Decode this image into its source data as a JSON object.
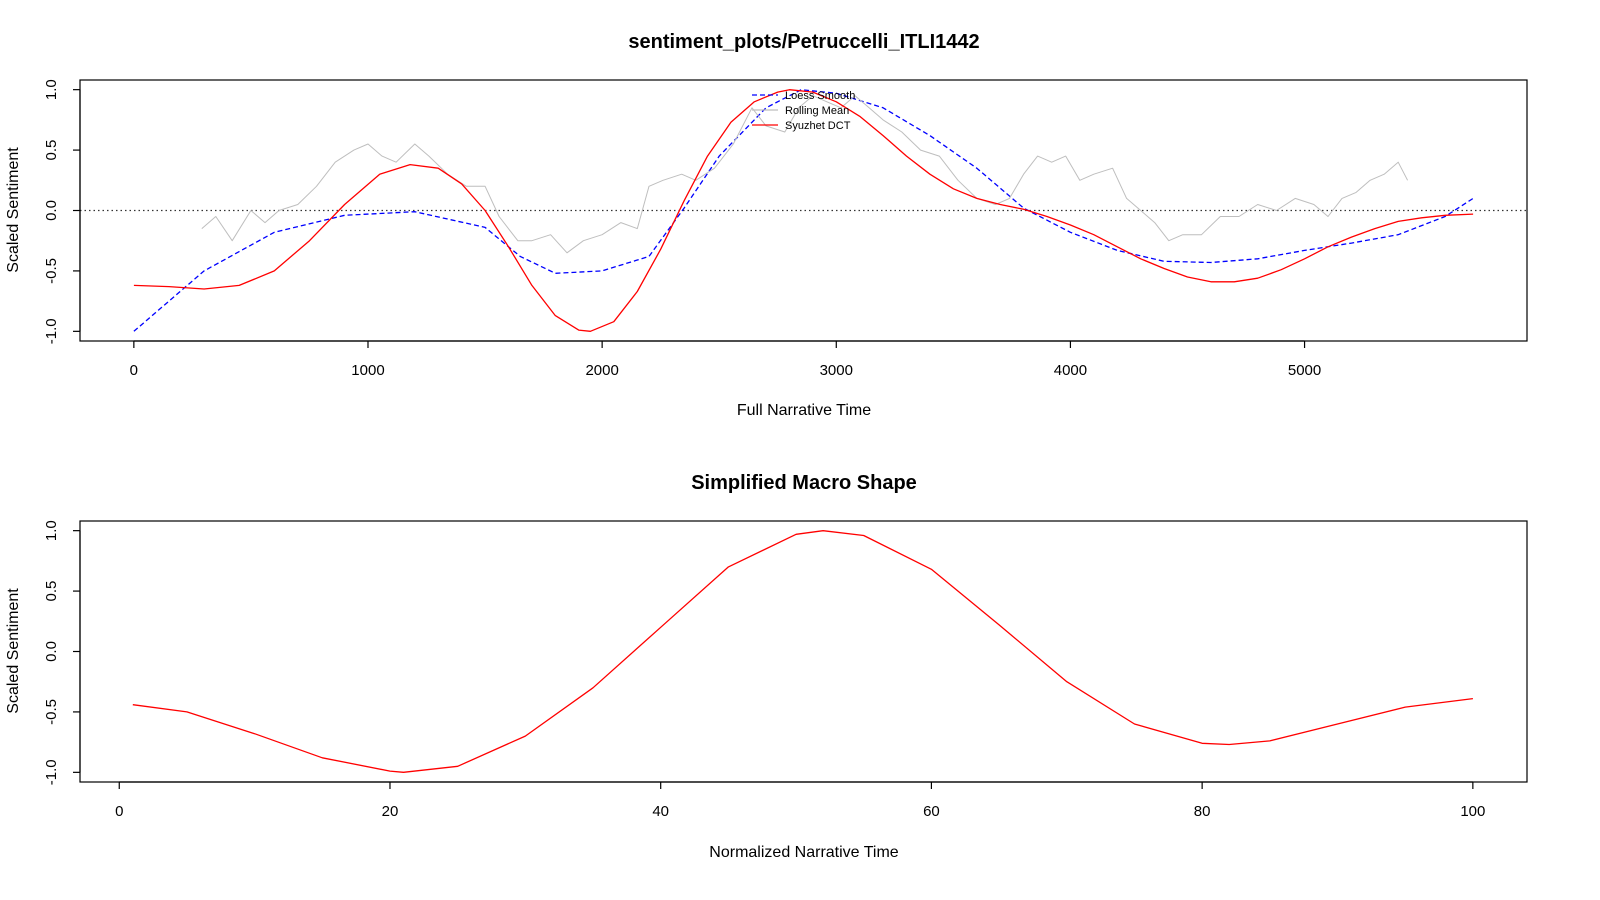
{
  "chart_data": [
    {
      "type": "line",
      "title": "sentiment_plots/Petruccelli_ITLI1442",
      "xlabel": "Full Narrative Time",
      "ylabel": "Scaled Sentiment",
      "xlim": [
        -230,
        5950
      ],
      "ylim": [
        -1.08,
        1.08
      ],
      "x_ticks": [
        0,
        1000,
        2000,
        3000,
        4000,
        5000
      ],
      "y_ticks": [
        -1.0,
        -0.5,
        0.0,
        0.5,
        1.0
      ],
      "y_tick_labels": [
        "-1.0",
        "-0.5",
        "0.0",
        "0.5",
        "1.0"
      ],
      "reference_line_y": 0,
      "legend": {
        "position": "top-center",
        "entries": [
          {
            "label": "Loess Smooth",
            "color": "#0000ff",
            "style": "dashed"
          },
          {
            "label": "Rolling Mean",
            "color": "#bebebe",
            "style": "solid"
          },
          {
            "label": "Syuzhet DCT",
            "color": "#ff0000",
            "style": "solid"
          }
        ]
      },
      "series": [
        {
          "name": "Loess Smooth",
          "color": "#0000ff",
          "style": "dashed",
          "x": [
            0,
            300,
            600,
            900,
            1200,
            1500,
            1650,
            1800,
            2000,
            2200,
            2350,
            2500,
            2700,
            2850,
            3000,
            3200,
            3400,
            3600,
            3800,
            4000,
            4200,
            4400,
            4600,
            4800,
            5000,
            5200,
            5400,
            5600,
            5720
          ],
          "y": [
            -1.0,
            -0.5,
            -0.18,
            -0.04,
            -0.01,
            -0.14,
            -0.38,
            -0.52,
            -0.5,
            -0.38,
            0.02,
            0.45,
            0.85,
            1.0,
            0.97,
            0.85,
            0.62,
            0.35,
            0.02,
            -0.18,
            -0.33,
            -0.42,
            -0.43,
            -0.4,
            -0.33,
            -0.27,
            -0.2,
            -0.05,
            0.1
          ]
        },
        {
          "name": "Rolling Mean",
          "color": "#bebebe",
          "style": "solid",
          "x": [
            290,
            350,
            420,
            500,
            560,
            620,
            700,
            780,
            860,
            940,
            1000,
            1060,
            1120,
            1200,
            1260,
            1340,
            1420,
            1500,
            1560,
            1640,
            1700,
            1780,
            1850,
            1920,
            2000,
            2080,
            2150,
            2200,
            2260,
            2340,
            2400,
            2480,
            2560,
            2640,
            2700,
            2780,
            2840,
            2900,
            2960,
            3020,
            3080,
            3140,
            3200,
            3280,
            3360,
            3440,
            3520,
            3600,
            3680,
            3740,
            3800,
            3860,
            3920,
            3980,
            4040,
            4100,
            4180,
            4240,
            4300,
            4360,
            4420,
            4480,
            4560,
            4640,
            4720,
            4800,
            4880,
            4960,
            5040,
            5100,
            5160,
            5220,
            5280,
            5340,
            5400,
            5440
          ],
          "y": [
            -0.15,
            -0.05,
            -0.25,
            0.0,
            -0.1,
            0.0,
            0.05,
            0.2,
            0.4,
            0.5,
            0.55,
            0.45,
            0.4,
            0.55,
            0.45,
            0.3,
            0.2,
            0.2,
            -0.05,
            -0.25,
            -0.25,
            -0.2,
            -0.35,
            -0.25,
            -0.2,
            -0.1,
            -0.15,
            0.2,
            0.25,
            0.3,
            0.25,
            0.35,
            0.55,
            0.85,
            0.7,
            0.65,
            0.85,
            0.95,
            0.9,
            0.85,
            0.95,
            0.85,
            0.75,
            0.65,
            0.5,
            0.45,
            0.25,
            0.1,
            0.05,
            0.1,
            0.3,
            0.45,
            0.4,
            0.45,
            0.25,
            0.3,
            0.35,
            0.1,
            0.0,
            -0.1,
            -0.25,
            -0.2,
            -0.2,
            -0.05,
            -0.05,
            0.05,
            0.0,
            0.1,
            0.05,
            -0.05,
            0.1,
            0.15,
            0.25,
            0.3,
            0.4,
            0.25
          ]
        },
        {
          "name": "Syuzhet DCT",
          "color": "#ff0000",
          "style": "solid",
          "x": [
            0,
            150,
            300,
            450,
            600,
            750,
            900,
            1050,
            1180,
            1300,
            1400,
            1500,
            1600,
            1700,
            1800,
            1900,
            1950,
            2050,
            2150,
            2250,
            2350,
            2450,
            2550,
            2650,
            2750,
            2800,
            2900,
            3000,
            3100,
            3200,
            3300,
            3400,
            3500,
            3600,
            3700,
            3800,
            3900,
            4000,
            4100,
            4200,
            4300,
            4400,
            4500,
            4600,
            4700,
            4800,
            4900,
            5000,
            5100,
            5200,
            5300,
            5400,
            5500,
            5600,
            5720
          ],
          "y": [
            -0.62,
            -0.63,
            -0.65,
            -0.62,
            -0.5,
            -0.25,
            0.05,
            0.3,
            0.38,
            0.35,
            0.22,
            0.0,
            -0.3,
            -0.62,
            -0.87,
            -0.99,
            -1.0,
            -0.92,
            -0.67,
            -0.32,
            0.08,
            0.45,
            0.73,
            0.9,
            0.98,
            1.0,
            0.98,
            0.9,
            0.78,
            0.62,
            0.45,
            0.3,
            0.18,
            0.1,
            0.05,
            0.01,
            -0.05,
            -0.12,
            -0.2,
            -0.3,
            -0.4,
            -0.48,
            -0.55,
            -0.59,
            -0.59,
            -0.56,
            -0.49,
            -0.4,
            -0.3,
            -0.22,
            -0.15,
            -0.09,
            -0.06,
            -0.04,
            -0.03
          ]
        }
      ]
    },
    {
      "type": "line",
      "title": "Simplified Macro Shape",
      "xlabel": "Normalized Narrative Time",
      "ylabel": "Scaled Sentiment",
      "xlim": [
        -2.9,
        104.0
      ],
      "ylim": [
        -1.08,
        1.08
      ],
      "x_ticks": [
        0,
        20,
        40,
        60,
        80,
        100
      ],
      "y_ticks": [
        -1.0,
        -0.5,
        0.0,
        0.5,
        1.0
      ],
      "y_tick_labels": [
        "-1.0",
        "-0.5",
        "0.0",
        "0.5",
        "1.0"
      ],
      "series": [
        {
          "color": "#ff0000",
          "style": "solid",
          "x": [
            1,
            5,
            10,
            15,
            20,
            21,
            25,
            30,
            35,
            40,
            45,
            50,
            52,
            55,
            60,
            65,
            70,
            75,
            80,
            82,
            85,
            90,
            95,
            100
          ],
          "y": [
            -0.44,
            -0.5,
            -0.68,
            -0.88,
            -0.99,
            -1.0,
            -0.95,
            -0.7,
            -0.3,
            0.2,
            0.7,
            0.97,
            1.0,
            0.96,
            0.68,
            0.22,
            -0.25,
            -0.6,
            -0.76,
            -0.77,
            -0.74,
            -0.6,
            -0.46,
            -0.39
          ]
        }
      ]
    }
  ]
}
